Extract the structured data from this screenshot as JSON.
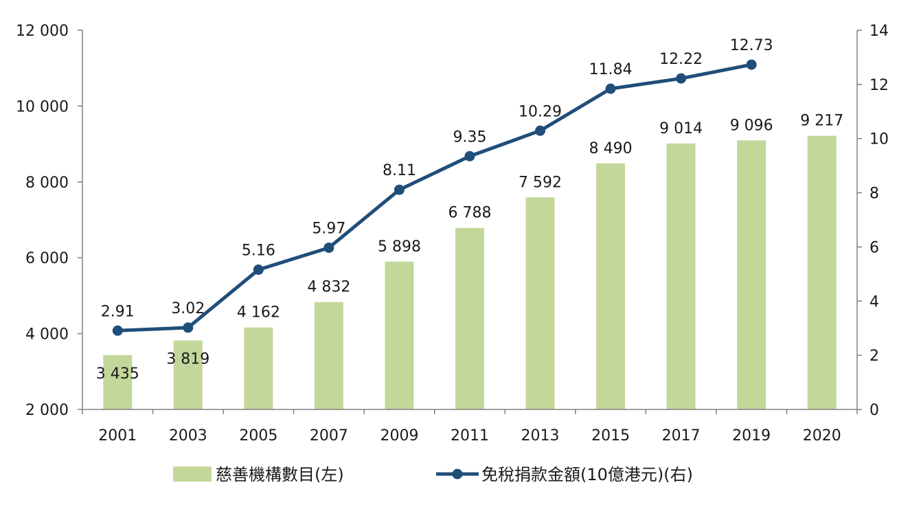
{
  "chart_data": {
    "type": "bar+line",
    "categories": [
      "2001",
      "2003",
      "2005",
      "2007",
      "2009",
      "2011",
      "2013",
      "2015",
      "2017",
      "2019",
      "2020"
    ],
    "series": [
      {
        "name": "慈善機構數目(左)",
        "type": "bar",
        "axis": "left",
        "values": [
          3435,
          3819,
          4162,
          4832,
          5898,
          6788,
          7592,
          8490,
          9014,
          9096,
          9217
        ],
        "labels": [
          "3 435",
          "3 819",
          "4 162",
          "4 832",
          "5 898",
          "6 788",
          "7 592",
          "8 490",
          "9 014",
          "9 096",
          "9 217"
        ],
        "color": "#c4d79b"
      },
      {
        "name": "免稅捐款金額(10億港元)(右)",
        "type": "line",
        "axis": "right",
        "values": [
          2.91,
          3.02,
          5.16,
          5.97,
          8.11,
          9.35,
          10.29,
          11.84,
          12.22,
          12.73,
          null
        ],
        "labels": [
          "2.91",
          "3.02",
          "5.16",
          "5.97",
          "8.11",
          "9.35",
          "10.29",
          "11.84",
          "12.22",
          "12.73",
          ""
        ],
        "color": "#1f4e79"
      }
    ],
    "left_axis": {
      "min": 2000,
      "max": 12000,
      "ticks": [
        2000,
        4000,
        6000,
        8000,
        10000,
        12000
      ],
      "tick_labels": [
        "2 000",
        "4 000",
        "6 000",
        "8 000",
        "10 000",
        "12 000"
      ]
    },
    "right_axis": {
      "min": 0,
      "max": 14,
      "ticks": [
        0,
        2,
        4,
        6,
        8,
        10,
        12,
        14
      ],
      "tick_labels": [
        "0",
        "2",
        "4",
        "6",
        "8",
        "10",
        "12",
        "14"
      ]
    },
    "grid": false,
    "legend_position": "bottom",
    "title": ""
  }
}
